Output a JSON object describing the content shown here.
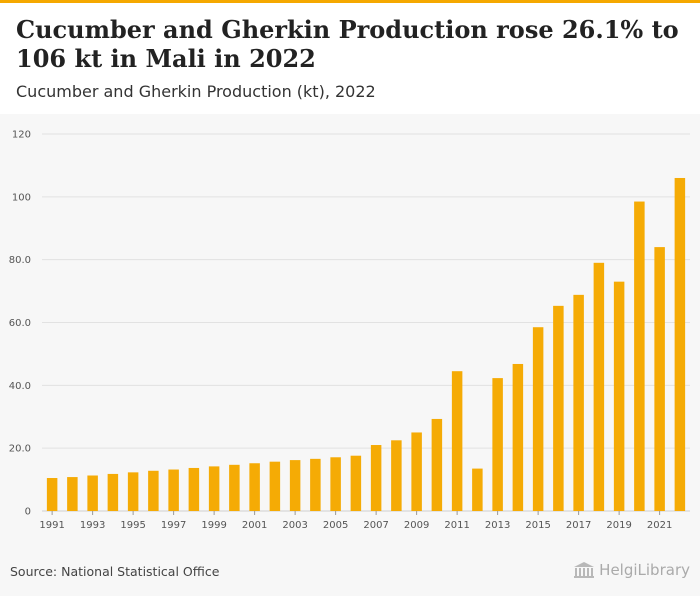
{
  "header": {
    "title": "Cucumber and Gherkin Production rose 26.1% to 106 kt in Mali in 2022",
    "subtitle": "Cucumber and Gherkin Production (kt), 2022"
  },
  "footer": {
    "source": "Source: National Statistical Office",
    "logo_text": "HelgiLibrary"
  },
  "colors": {
    "accent": "#f5a800",
    "bar": "#f5ab05",
    "grid": "#e2e2e2",
    "axis_text": "#555555"
  },
  "chart_data": {
    "type": "bar",
    "title": "Cucumber and Gherkin Production (kt), 2022",
    "xlabel": "",
    "ylabel": "",
    "categories": [
      "1991",
      "1992",
      "1993",
      "1994",
      "1995",
      "1996",
      "1997",
      "1998",
      "1999",
      "2000",
      "2001",
      "2002",
      "2003",
      "2004",
      "2005",
      "2006",
      "2007",
      "2008",
      "2009",
      "2010",
      "2011",
      "2012",
      "2013",
      "2014",
      "2015",
      "2016",
      "2017",
      "2018",
      "2019",
      "2020",
      "2021",
      "2022"
    ],
    "values": [
      10.5,
      10.8,
      11.3,
      11.8,
      12.3,
      12.8,
      13.2,
      13.7,
      14.2,
      14.7,
      15.2,
      15.7,
      16.2,
      16.6,
      17.1,
      17.6,
      21.0,
      22.5,
      25.0,
      29.3,
      44.5,
      13.5,
      42.3,
      46.8,
      58.5,
      65.3,
      68.8,
      79.0,
      73.0,
      98.5,
      84.0,
      106.0
    ],
    "x_tick_labels": [
      "1991",
      "1993",
      "1995",
      "1997",
      "1999",
      "2001",
      "2003",
      "2005",
      "2007",
      "2009",
      "2011",
      "2013",
      "2015",
      "2017",
      "2019",
      "2021"
    ],
    "y_tick_labels": [
      "0",
      "20.0",
      "40.0",
      "60.0",
      "80.0",
      "100",
      "120"
    ],
    "y_ticks": [
      0,
      20,
      40,
      60,
      80,
      100,
      120
    ],
    "ylim": [
      0,
      120
    ],
    "grid": true,
    "legend": "none"
  }
}
